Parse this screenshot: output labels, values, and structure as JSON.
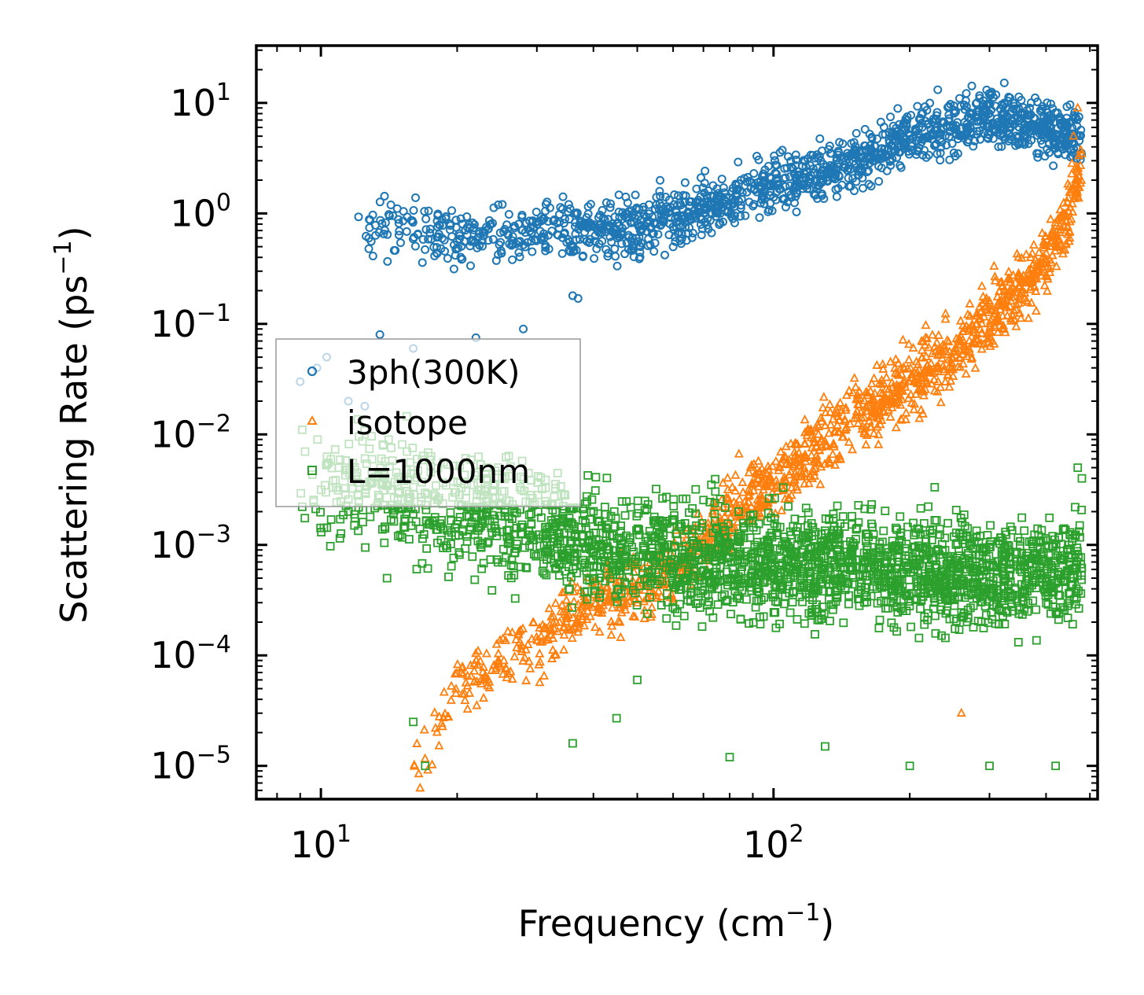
{
  "chart_data": {
    "type": "scatter",
    "title": "",
    "xlabel": "Frequency (cm",
    "xlabel_exp": "−1",
    "xlabel_close": ")",
    "ylabel": "Scattering Rate (ps",
    "ylabel_exp": "−1",
    "ylabel_close": ")",
    "xscale": "log",
    "yscale": "log",
    "xlim": [
      7.2,
      520
    ],
    "ylim": [
      5e-06,
      33
    ],
    "x_ticks": [
      {
        "base": "10",
        "exp": "1",
        "value": 10
      },
      {
        "base": "10",
        "exp": "2",
        "value": 100
      }
    ],
    "y_ticks": [
      {
        "base": "10",
        "exp": "1",
        "value": 10
      },
      {
        "base": "10",
        "exp": "0",
        "value": 1
      },
      {
        "base": "10",
        "exp": "−1",
        "value": 0.1
      },
      {
        "base": "10",
        "exp": "−2",
        "value": 0.01
      },
      {
        "base": "10",
        "exp": "−3",
        "value": 0.001
      },
      {
        "base": "10",
        "exp": "−4",
        "value": 0.0001
      },
      {
        "base": "10",
        "exp": "−5",
        "value": 1e-05
      }
    ],
    "legend": {
      "placement": "center-left"
    },
    "series": [
      {
        "name": "3ph(300K)",
        "marker": "circle",
        "color": "#1f77b4",
        "trend": [
          [
            12,
            0.8
          ],
          [
            20,
            0.6
          ],
          [
            30,
            0.7
          ],
          [
            40,
            0.65
          ],
          [
            60,
            0.9
          ],
          [
            100,
            1.8
          ],
          [
            150,
            2.8
          ],
          [
            200,
            5
          ],
          [
            300,
            8
          ],
          [
            400,
            6
          ],
          [
            480,
            4.5
          ]
        ],
        "spread_decades": 0.25,
        "outliers": [
          [
            9,
            0.03
          ],
          [
            9.8,
            0.04
          ],
          [
            10.3,
            0.05
          ],
          [
            11.5,
            0.02
          ],
          [
            12.5,
            0.018
          ],
          [
            13.5,
            0.08
          ],
          [
            16,
            0.06
          ],
          [
            22,
            0.075
          ],
          [
            28,
            0.09
          ],
          [
            36,
            0.18
          ],
          [
            37,
            0.17
          ]
        ]
      },
      {
        "name": "isotope",
        "marker": "triangle",
        "color": "#ff7f0e",
        "trend": [
          [
            16,
            1e-05
          ],
          [
            20,
            5e-05
          ],
          [
            25,
            9e-05
          ],
          [
            30,
            0.00012
          ],
          [
            35,
            0.0002
          ],
          [
            40,
            0.0003
          ],
          [
            50,
            0.0004
          ],
          [
            60,
            0.0006
          ],
          [
            70,
            0.001
          ],
          [
            80,
            0.002
          ],
          [
            90,
            0.003
          ],
          [
            100,
            0.004
          ],
          [
            120,
            0.006
          ],
          [
            150,
            0.015
          ],
          [
            200,
            0.03
          ],
          [
            250,
            0.05
          ],
          [
            300,
            0.12
          ],
          [
            350,
            0.2
          ],
          [
            400,
            0.4
          ],
          [
            450,
            1
          ],
          [
            480,
            3
          ]
        ],
        "spread_decades": 0.3,
        "outliers": [
          [
            260,
            3e-05
          ],
          [
            470,
            9
          ],
          [
            460,
            5
          ]
        ]
      },
      {
        "name": "L=1000nm",
        "marker": "square",
        "color": "#2ca02c",
        "trend": [
          [
            9,
            0.004
          ],
          [
            14,
            0.003
          ],
          [
            20,
            0.002
          ],
          [
            30,
            0.0015
          ],
          [
            40,
            0.001
          ],
          [
            60,
            0.0008
          ],
          [
            100,
            0.0007
          ],
          [
            200,
            0.0006
          ],
          [
            300,
            0.0005
          ],
          [
            480,
            0.0006
          ]
        ],
        "spread_decades": 0.5,
        "outliers": [
          [
            14,
            0.0005
          ],
          [
            16,
            2.5e-05
          ],
          [
            17,
            1e-05
          ],
          [
            36,
            1.6e-05
          ],
          [
            45,
            2.7e-05
          ],
          [
            50,
            6e-05
          ],
          [
            80,
            1.2e-05
          ],
          [
            130,
            1.5e-05
          ],
          [
            200,
            1e-05
          ],
          [
            300,
            1e-05
          ],
          [
            420,
            1e-05
          ],
          [
            470,
            0.005
          ],
          [
            480,
            0.004
          ]
        ]
      }
    ]
  }
}
